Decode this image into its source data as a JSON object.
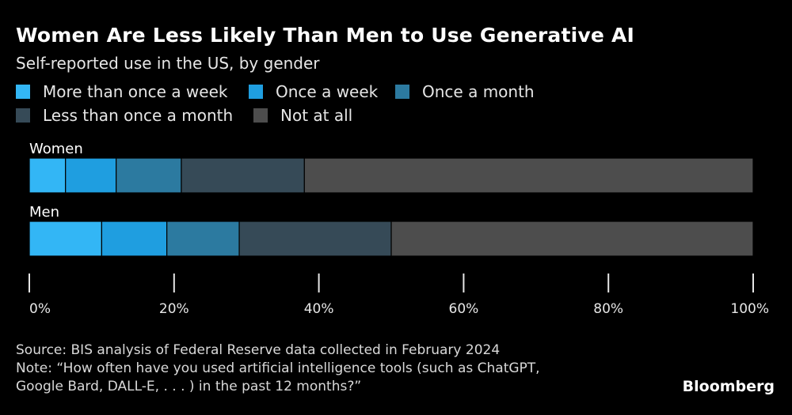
{
  "chart_data": {
    "type": "bar",
    "orientation": "horizontal",
    "stacked": true,
    "title": "Women Are Less Likely Than Men to Use Generative AI",
    "subtitle": "Self-reported use in the US, by gender",
    "categories": [
      "Women",
      "Men"
    ],
    "series": [
      {
        "name": "More than once a week",
        "color": "#33b6f5",
        "values": [
          5,
          10
        ]
      },
      {
        "name": "Once a week",
        "color": "#1f9ee0",
        "values": [
          7,
          9
        ]
      },
      {
        "name": "Once a month",
        "color": "#2c7aa0",
        "values": [
          9,
          10
        ]
      },
      {
        "name": "Less than once a month",
        "color": "#364a57",
        "values": [
          17,
          21
        ]
      },
      {
        "name": "Not at all",
        "color": "#4d4d4d",
        "values": [
          62,
          50
        ]
      }
    ],
    "xlim": [
      0,
      100
    ],
    "x_ticks": [
      "0%",
      "20%",
      "40%",
      "60%",
      "80%",
      "100%"
    ],
    "legend_position": "top-left",
    "grid": false
  },
  "footer": {
    "source": "Source: BIS analysis of Federal Reserve data collected in February 2024",
    "note_line1": "Note: “How often have you used artificial intelligence tools (such as ChatGPT,",
    "note_line2": "Google Bard, DALL-E, . . . ) in the past 12 months?”",
    "brand": "Bloomberg"
  }
}
